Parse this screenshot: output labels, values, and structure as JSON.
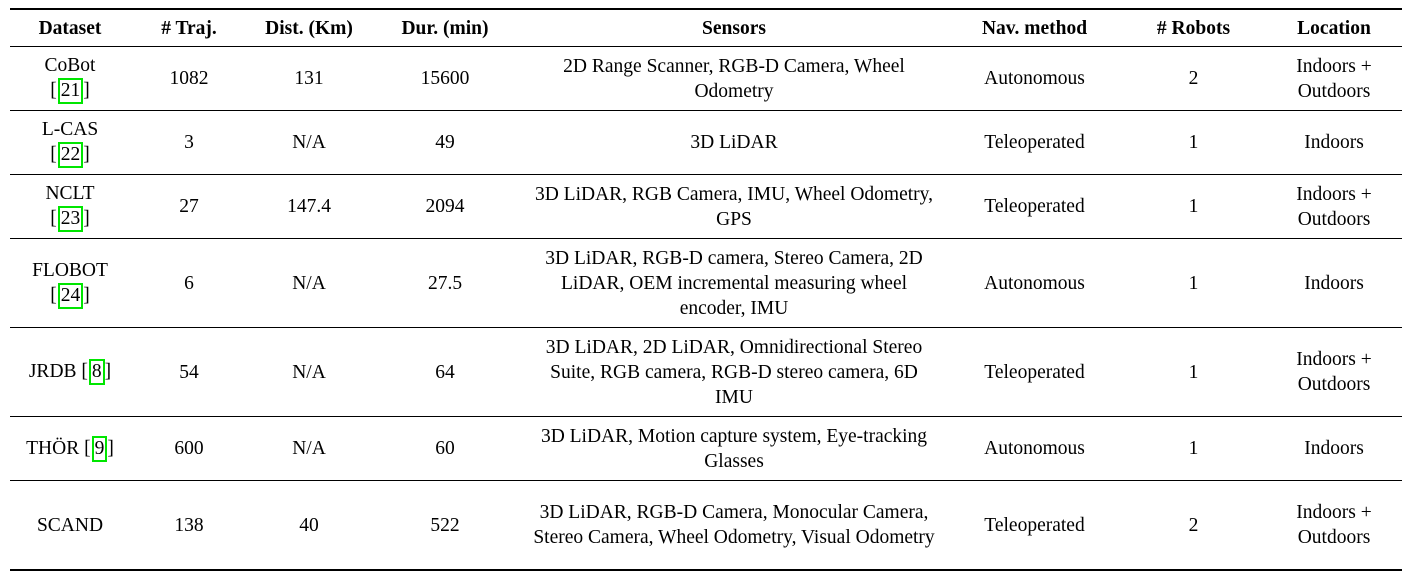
{
  "table": {
    "headers": {
      "dataset": "Dataset",
      "traj": "# Traj.",
      "dist": "Dist. (Km)",
      "dur": "Dur. (min)",
      "sensors": "Sensors",
      "nav": "Nav. method",
      "robots": "# Robots",
      "location": "Location"
    },
    "rows": [
      {
        "name": "CoBot",
        "cite": "21",
        "bracket_open": "[",
        "bracket_close": "]",
        "traj": "1082",
        "dist": "131",
        "dur": "15600",
        "sensors": "2D Range Scanner, RGB-D Camera, Wheel Odometry",
        "nav": "Autonomous",
        "robots": "2",
        "location": "Indoors + Outdoors"
      },
      {
        "name": "L-CAS",
        "cite": "22",
        "bracket_open": "[",
        "bracket_close": "]",
        "traj": "3",
        "dist": "N/A",
        "dur": "49",
        "sensors": "3D LiDAR",
        "nav": "Teleoperated",
        "robots": "1",
        "location": "Indoors"
      },
      {
        "name": "NCLT",
        "cite": "23",
        "bracket_open": "[",
        "bracket_close": "]",
        "traj": "27",
        "dist": "147.4",
        "dur": "2094",
        "sensors": "3D LiDAR, RGB Camera, IMU, Wheel Odometry, GPS",
        "nav": "Teleoperated",
        "robots": "1",
        "location": "Indoors + Outdoors"
      },
      {
        "name": "FLOBOT",
        "cite": "24",
        "bracket_open": "[",
        "bracket_close": "]",
        "traj": "6",
        "dist": "N/A",
        "dur": "27.5",
        "sensors": "3D LiDAR, RGB-D camera, Stereo Camera, 2D LiDAR, OEM incremental measuring wheel encoder, IMU",
        "nav": "Autonomous",
        "robots": "1",
        "location": "Indoors"
      },
      {
        "name": "JRDB",
        "cite": "8",
        "bracket_open": "[",
        "bracket_close": "]",
        "traj": "54",
        "dist": "N/A",
        "dur": "64",
        "sensors": "3D LiDAR, 2D LiDAR, Omnidirectional Stereo Suite, RGB camera, RGB-D stereo camera, 6D IMU",
        "nav": "Teleoperated",
        "robots": "1",
        "location": "Indoors + Outdoors"
      },
      {
        "name": "THÖR",
        "cite": "9",
        "bracket_open": "[",
        "bracket_close": "]",
        "traj": "600",
        "dist": "N/A",
        "dur": "60",
        "sensors": "3D LiDAR, Motion capture system, Eye-tracking Glasses",
        "nav": "Autonomous",
        "robots": "1",
        "location": "Indoors"
      },
      {
        "name": "SCAND",
        "traj": "138",
        "dist": "40",
        "dur": "522",
        "sensors": "3D LiDAR, RGB-D Camera, Monocular Camera, Stereo Camera, Wheel Odometry, Visual Odometry",
        "nav": "Teleoperated",
        "robots": "2",
        "location": "Indoors + Outdoors"
      }
    ]
  }
}
